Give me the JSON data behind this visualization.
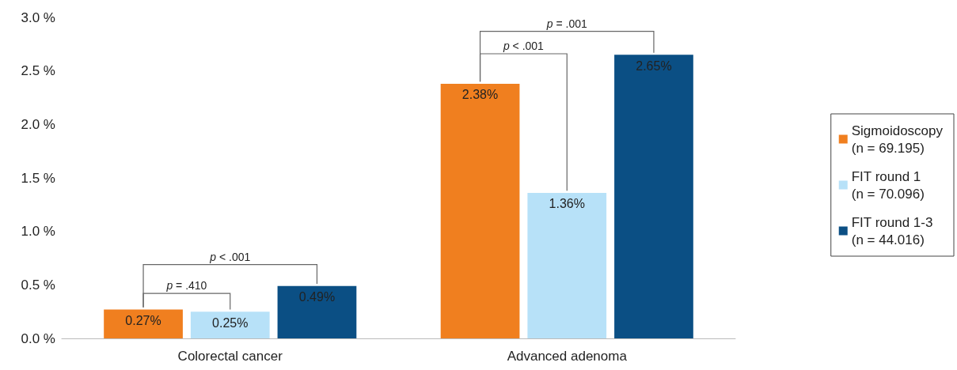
{
  "chart_data": {
    "type": "bar",
    "categories": [
      "Colorectal cancer",
      "Advanced adenoma"
    ],
    "series": [
      {
        "name": "Sigmoidoscopy\n(n = 69.195)",
        "color": "#f07f1f",
        "values": [
          0.27,
          2.38
        ],
        "value_labels": [
          "0.27%",
          "2.38%"
        ]
      },
      {
        "name": "FIT round 1\n(n = 70.096)",
        "color": "#b7e1f8",
        "values": [
          0.25,
          1.36
        ],
        "value_labels": [
          "0.25%",
          "1.36%"
        ]
      },
      {
        "name": "FIT round 1-3\n(n = 44.016)",
        "color": "#0b4f84",
        "values": [
          0.49,
          2.65
        ],
        "value_labels": [
          "0.49%",
          "2.65%"
        ]
      }
    ],
    "ylim": [
      0,
      3
    ],
    "yticks": [
      {
        "value": 0,
        "label": "0.0 %"
      },
      {
        "value": 0.5,
        "label": "0.5 %"
      },
      {
        "value": 1,
        "label": "1.0 %"
      },
      {
        "value": 1.5,
        "label": "1.5 %"
      },
      {
        "value": 2,
        "label": "2.0 %"
      },
      {
        "value": 2.5,
        "label": "2.5 %"
      },
      {
        "value": 3,
        "label": "3.0 %"
      }
    ],
    "annotations": [
      "p = .410",
      "p < .001",
      "p < .001",
      "p = .001"
    ],
    "grid": false,
    "legend": "right"
  }
}
